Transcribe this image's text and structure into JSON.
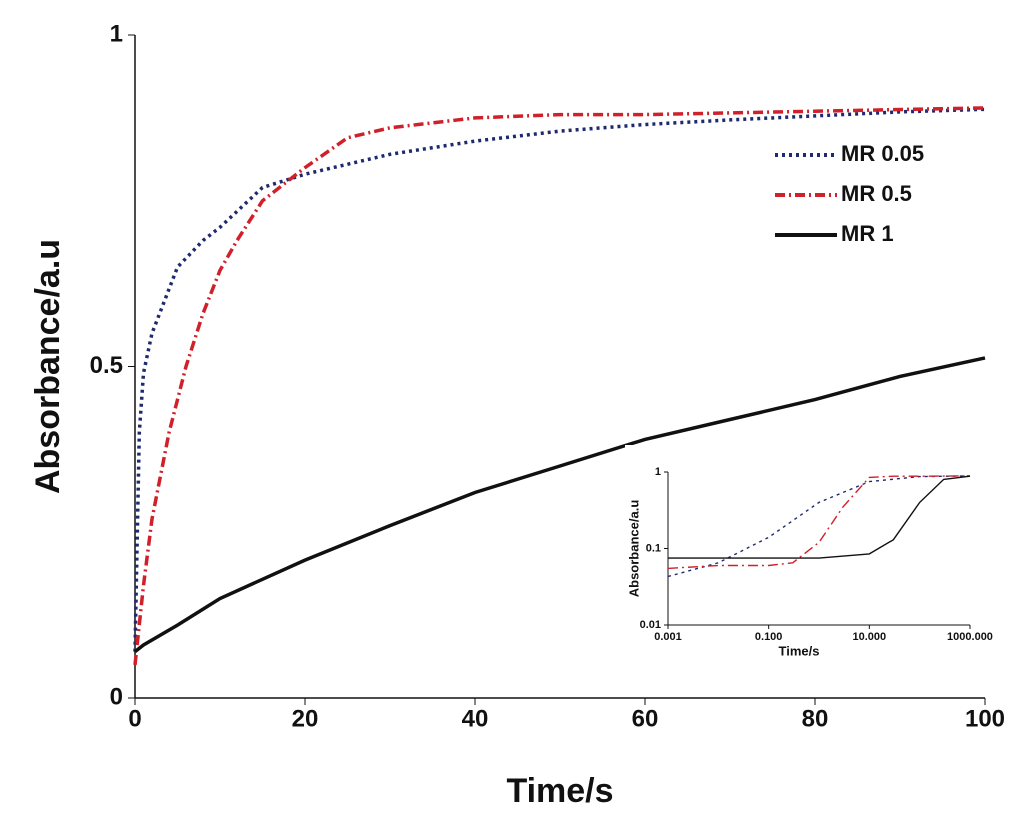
{
  "chart_data": [
    {
      "type": "line",
      "xlabel": "Time/s",
      "ylabel": "Absorbance/a.u",
      "xlim": [
        0,
        100
      ],
      "xticks": [
        0,
        20,
        40,
        60,
        80,
        100
      ],
      "ylim": [
        0,
        1
      ],
      "yticks": [
        0,
        0.5,
        1
      ],
      "legend": "upper right",
      "series": [
        {
          "name": "MR 0.05",
          "color": "#1f2a6e",
          "linestyle": "dotted",
          "x": [
            0,
            0.5,
            1,
            2,
            5,
            8,
            10,
            15,
            20,
            30,
            40,
            50,
            60,
            70,
            80,
            90,
            100
          ],
          "values": [
            0.07,
            0.4,
            0.49,
            0.55,
            0.65,
            0.69,
            0.71,
            0.77,
            0.79,
            0.82,
            0.84,
            0.855,
            0.865,
            0.872,
            0.878,
            0.884,
            0.888
          ]
        },
        {
          "name": "MR 0.5",
          "color": "#d0202a",
          "linestyle": "dashdot",
          "x": [
            0,
            1,
            2,
            4,
            6,
            8,
            10,
            12,
            15,
            20,
            25,
            30,
            40,
            50,
            60,
            80,
            100
          ],
          "values": [
            0.05,
            0.17,
            0.27,
            0.4,
            0.5,
            0.58,
            0.645,
            0.69,
            0.75,
            0.8,
            0.845,
            0.86,
            0.875,
            0.88,
            0.88,
            0.885,
            0.89
          ]
        },
        {
          "name": "MR 1",
          "color": "#111111",
          "linestyle": "solid",
          "x": [
            0,
            1,
            5,
            10,
            20,
            30,
            40,
            50,
            60,
            70,
            80,
            90,
            100
          ],
          "values": [
            0.07,
            0.08,
            0.11,
            0.15,
            0.208,
            0.26,
            0.31,
            0.35,
            0.39,
            0.42,
            0.45,
            0.485,
            0.513
          ]
        }
      ]
    },
    {
      "type": "line",
      "xlabel": "Time/s",
      "ylabel": "Absorbance/a.u",
      "xlog": true,
      "ylog": true,
      "xlim": [
        0.001,
        1000
      ],
      "xticks": [
        {
          "value": 0.001,
          "label": "0.001"
        },
        {
          "value": 0.1,
          "label": "0.100"
        },
        {
          "value": 10,
          "label": "10.000"
        },
        {
          "value": 1000,
          "label": "1000.000"
        }
      ],
      "ylim": [
        0.01,
        1
      ],
      "yticks": [
        0.01,
        0.1,
        1
      ],
      "series": [
        {
          "color": "#1f2a6e",
          "linestyle": "dotted",
          "x": [
            0.001,
            0.01,
            0.1,
            1,
            10,
            100,
            1000
          ],
          "values": [
            0.043,
            0.065,
            0.14,
            0.4,
            0.75,
            0.87,
            0.89
          ]
        },
        {
          "color": "#d0202a",
          "linestyle": "dashdot",
          "x": [
            0.001,
            0.01,
            0.1,
            0.3,
            1,
            3,
            10,
            30,
            100,
            1000
          ],
          "values": [
            0.055,
            0.06,
            0.06,
            0.065,
            0.12,
            0.35,
            0.85,
            0.88,
            0.88,
            0.89
          ]
        },
        {
          "color": "#111111",
          "linestyle": "solid",
          "x": [
            0.001,
            0.1,
            1,
            10,
            30,
            100,
            300,
            1000
          ],
          "values": [
            0.075,
            0.075,
            0.075,
            0.085,
            0.13,
            0.4,
            0.8,
            0.88
          ]
        }
      ]
    }
  ]
}
